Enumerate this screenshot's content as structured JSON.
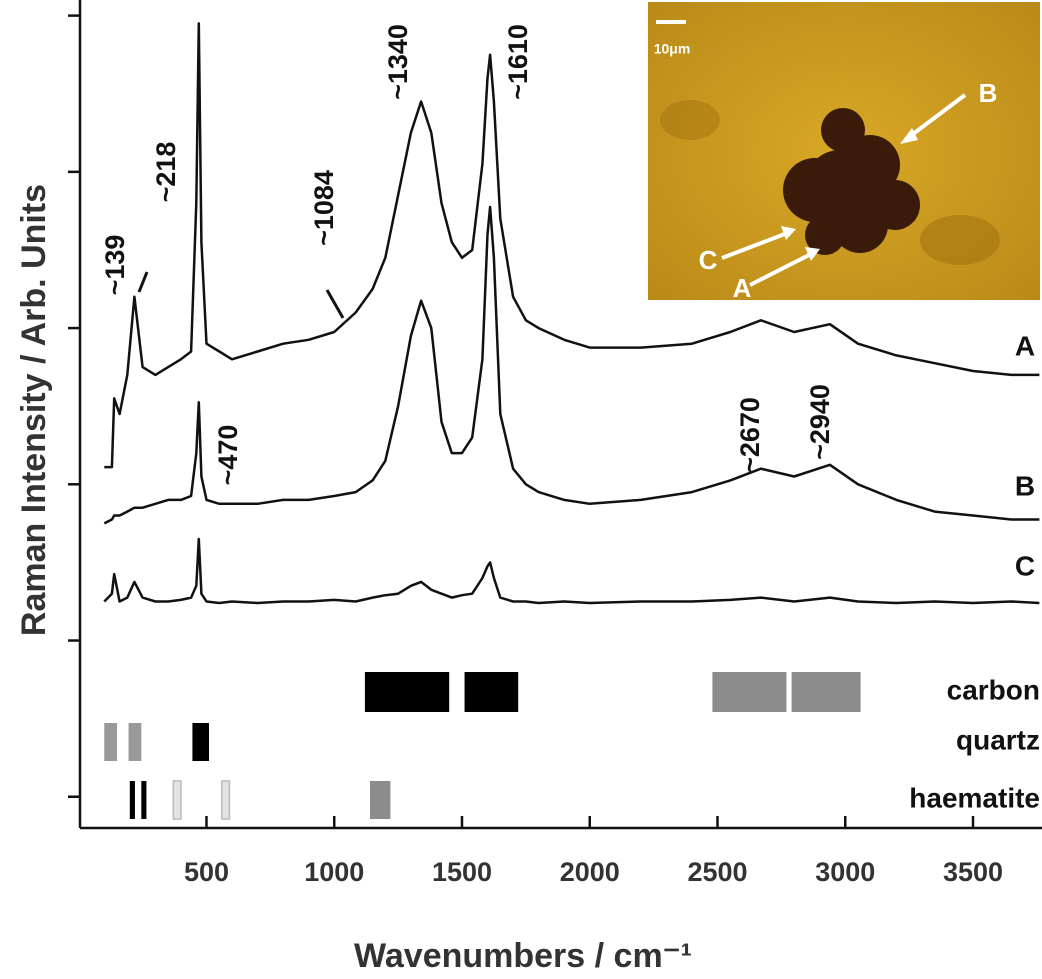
{
  "chart_data": {
    "type": "line",
    "x_label": "Wavenumbers / cm⁻¹",
    "y_label": "Raman Intensity / Arb. Units",
    "xlim": [
      5,
      3770
    ],
    "ylim": [
      0,
      10.6
    ],
    "xticks": [
      500,
      1000,
      1500,
      2000,
      2500,
      3000,
      3500
    ],
    "yticks": [
      0.4,
      2.4,
      4.4,
      6.4,
      8.4,
      10.4
    ],
    "x": [
      100,
      130,
      139,
      160,
      190,
      218,
      250,
      300,
      350,
      400,
      440,
      460,
      470,
      480,
      500,
      550,
      600,
      700,
      800,
      900,
      1000,
      1084,
      1150,
      1200,
      1250,
      1300,
      1340,
      1380,
      1420,
      1460,
      1500,
      1540,
      1580,
      1600,
      1610,
      1625,
      1650,
      1700,
      1750,
      1800,
      1900,
      2000,
      2200,
      2400,
      2550,
      2670,
      2800,
      2940,
      3050,
      3200,
      3350,
      3500,
      3650,
      3760
    ],
    "series": [
      {
        "name": "A",
        "color": "#111111",
        "values": [
          4.62,
          4.62,
          5.5,
          5.3,
          5.8,
          6.8,
          5.9,
          5.8,
          5.9,
          6.0,
          6.1,
          8.0,
          10.3,
          7.5,
          6.2,
          6.1,
          6.0,
          6.1,
          6.2,
          6.25,
          6.35,
          6.6,
          6.9,
          7.3,
          8.1,
          8.9,
          9.3,
          8.9,
          8.0,
          7.5,
          7.3,
          7.4,
          8.5,
          9.6,
          9.9,
          9.3,
          7.8,
          6.8,
          6.5,
          6.4,
          6.25,
          6.15,
          6.15,
          6.2,
          6.35,
          6.5,
          6.35,
          6.45,
          6.2,
          6.05,
          5.95,
          5.85,
          5.8,
          5.8
        ]
      },
      {
        "name": "B",
        "color": "#111111",
        "values": [
          3.9,
          3.95,
          4.0,
          4.0,
          4.05,
          4.1,
          4.1,
          4.15,
          4.2,
          4.2,
          4.25,
          4.8,
          5.45,
          4.5,
          4.2,
          4.15,
          4.15,
          4.15,
          4.2,
          4.2,
          4.25,
          4.3,
          4.45,
          4.7,
          5.4,
          6.3,
          6.75,
          6.4,
          5.2,
          4.8,
          4.8,
          5.0,
          6.0,
          7.6,
          7.95,
          7.3,
          5.3,
          4.6,
          4.4,
          4.3,
          4.2,
          4.15,
          4.2,
          4.3,
          4.45,
          4.6,
          4.5,
          4.65,
          4.4,
          4.2,
          4.05,
          4.0,
          3.95,
          3.95
        ]
      },
      {
        "name": "C",
        "color": "#111111",
        "values": [
          2.9,
          3.0,
          3.25,
          2.9,
          2.95,
          3.15,
          2.95,
          2.9,
          2.9,
          2.92,
          2.95,
          3.1,
          3.7,
          3.0,
          2.9,
          2.88,
          2.9,
          2.88,
          2.9,
          2.9,
          2.92,
          2.9,
          2.95,
          2.98,
          3.0,
          3.1,
          3.15,
          3.05,
          3.0,
          2.95,
          2.98,
          3.0,
          3.2,
          3.35,
          3.4,
          3.2,
          2.95,
          2.9,
          2.9,
          2.88,
          2.9,
          2.88,
          2.9,
          2.9,
          2.92,
          2.95,
          2.9,
          2.95,
          2.9,
          2.88,
          2.9,
          2.88,
          2.9,
          2.88
        ]
      }
    ],
    "annotations": [
      "~139",
      "~218",
      "~1084",
      "~1340",
      "~1610",
      "~470",
      "~2670",
      "~2940"
    ],
    "reference_bands": [
      {
        "name": "carbon",
        "bands": [
          {
            "x": [
              1120,
              1450
            ],
            "color": "#000000"
          },
          {
            "x": [
              1510,
              1720
            ],
            "color": "#000000"
          },
          {
            "x": [
              2480,
              2770
            ],
            "color": "#8c8c8c"
          },
          {
            "x": [
              2790,
              3060
            ],
            "color": "#8c8c8c"
          }
        ]
      },
      {
        "name": "quartz",
        "bands": [
          {
            "x": [
              100,
              150
            ],
            "color": "#999999"
          },
          {
            "x": [
              195,
              245
            ],
            "color": "#999999"
          },
          {
            "x": [
              445,
              510
            ],
            "color": "#000000"
          }
        ]
      },
      {
        "name": "haematite",
        "bands": [
          {
            "x": [
              200,
              220
            ],
            "color": "#000000"
          },
          {
            "x": [
              245,
              265
            ],
            "color": "#000000"
          },
          {
            "x": [
              370,
              400
            ],
            "color": "#e4e4e4"
          },
          {
            "x": [
              560,
              590
            ],
            "color": "#e4e4e4"
          },
          {
            "x": [
              1140,
              1220
            ],
            "color": "#8c8c8c"
          }
        ]
      }
    ],
    "inset": {
      "scale_label": "10μm",
      "labels": [
        "A",
        "B",
        "C"
      ]
    }
  }
}
